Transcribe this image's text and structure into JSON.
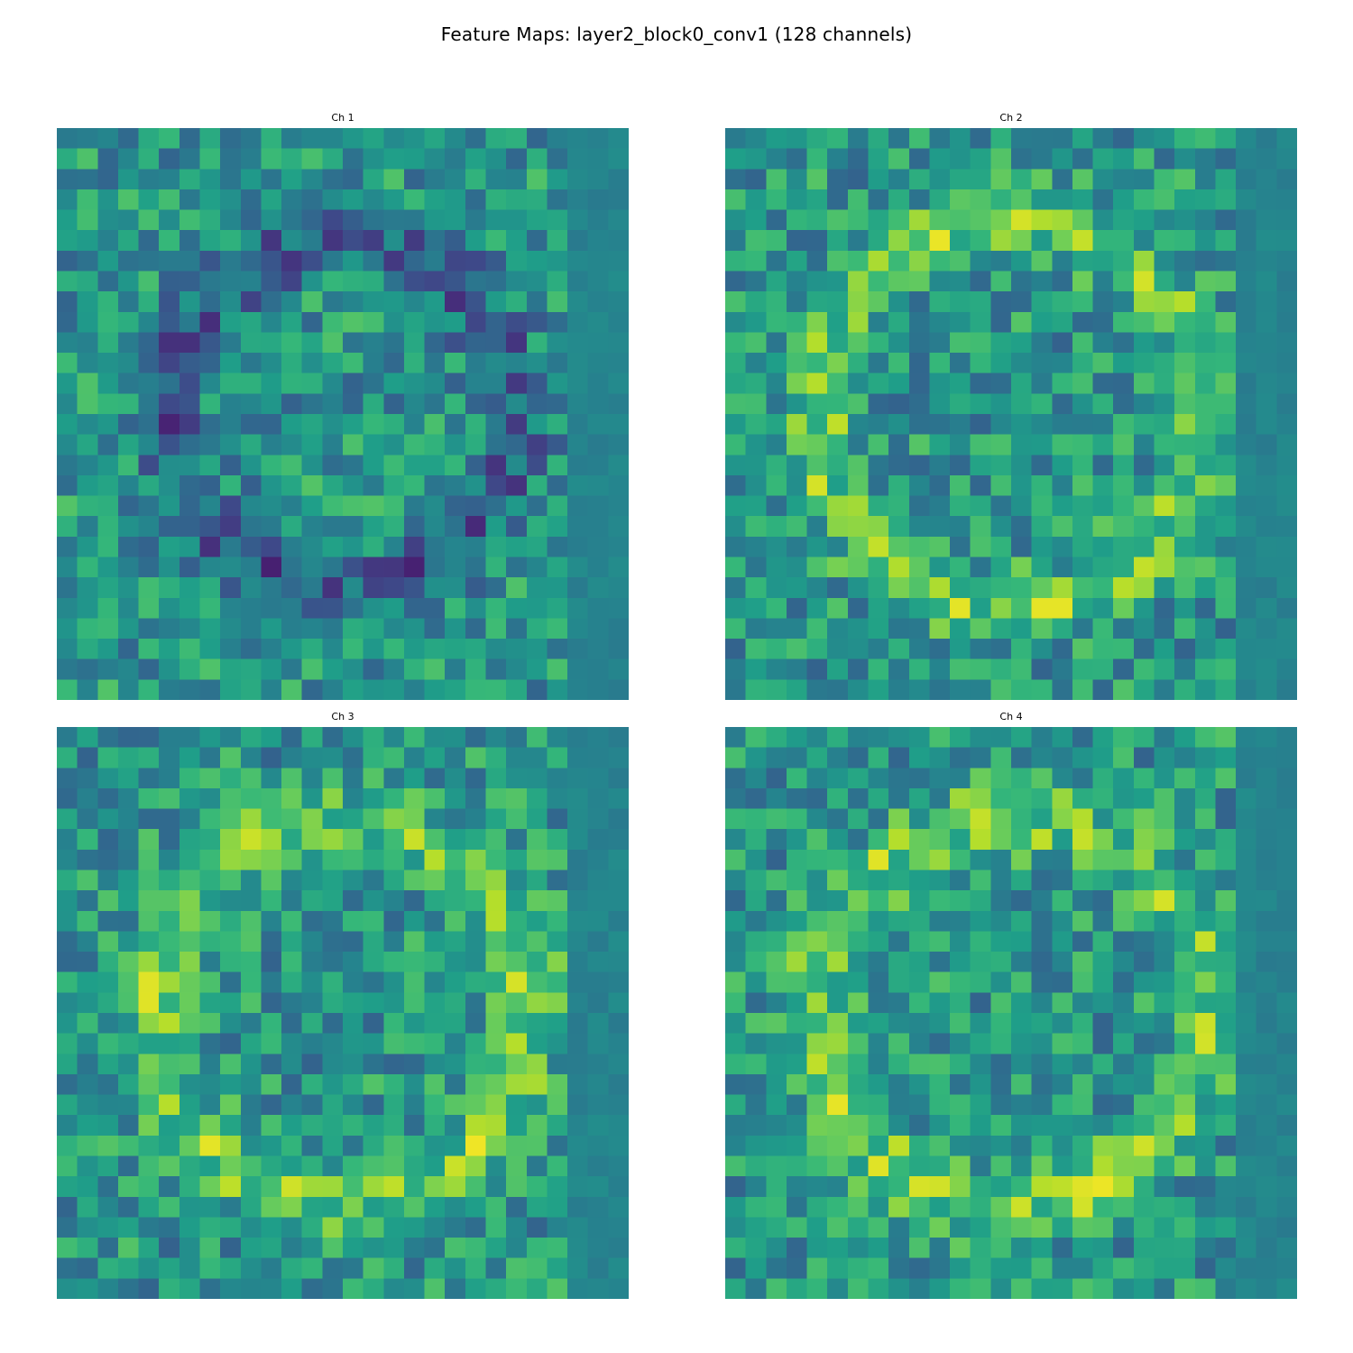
{
  "figure": {
    "title": "Feature Maps: layer2_block0_conv1 (128 channels)"
  },
  "colormap": {
    "name": "viridis",
    "stops": [
      "#440154",
      "#482878",
      "#3e4a89",
      "#31688e",
      "#26828e",
      "#1f9e89",
      "#35b779",
      "#6ece58",
      "#b5de2b",
      "#fde725"
    ]
  },
  "chart_data": [
    {
      "type": "heatmap",
      "title": "Ch 1",
      "rows": 28,
      "cols": 28,
      "axes": "off",
      "pattern": "ring",
      "ring_radius": 0.62,
      "ring_sign": -1,
      "seed": 11,
      "values": []
    },
    {
      "type": "heatmap",
      "title": "Ch 2",
      "rows": 28,
      "cols": 28,
      "axes": "off",
      "pattern": "ring",
      "ring_radius": 0.7,
      "ring_sign": 1,
      "seed": 23,
      "values": []
    },
    {
      "type": "heatmap",
      "title": "Ch 3",
      "rows": 28,
      "cols": 28,
      "axes": "off",
      "pattern": "ring",
      "ring_radius": 0.68,
      "ring_sign": 1,
      "seed": 37,
      "values": []
    },
    {
      "type": "heatmap",
      "title": "Ch 4",
      "rows": 28,
      "cols": 28,
      "axes": "off",
      "pattern": "ring",
      "ring_radius": 0.7,
      "ring_sign": 1,
      "seed": 51,
      "values": []
    }
  ]
}
